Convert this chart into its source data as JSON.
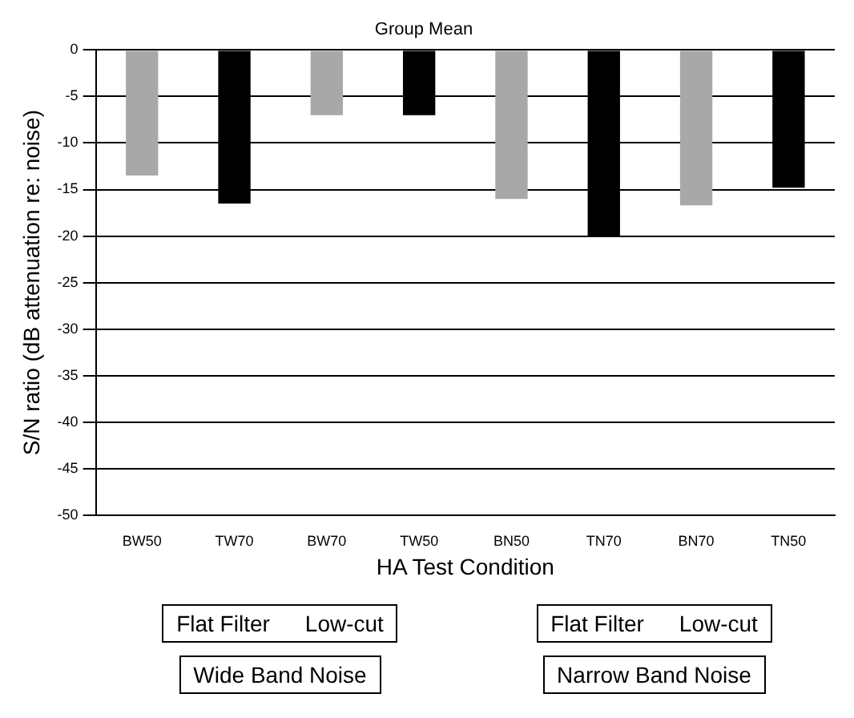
{
  "chart_data": {
    "type": "bar",
    "title": "Group Mean",
    "xlabel": "HA Test Condition",
    "ylabel": "S/N ratio (dB attenuation re: noise)",
    "categories": [
      "BW50",
      "TW70",
      "BW70",
      "TW50",
      "BN50",
      "TN70",
      "BN70",
      "TN50"
    ],
    "values": [
      -13.5,
      -16.5,
      -7,
      -7,
      -16,
      -20,
      -16.7,
      -14.8
    ],
    "colors": [
      "#a8a8a8",
      "#000000",
      "#a8a8a8",
      "#000000",
      "#a8a8a8",
      "#000000",
      "#a8a8a8",
      "#000000"
    ],
    "ylim": [
      -50,
      0
    ],
    "yticks": [
      -50,
      -45,
      -40,
      -35,
      -30,
      -25,
      -20,
      -15,
      -10,
      -5,
      0
    ],
    "grid": "y",
    "legend": false,
    "annotations": [
      "Flat Filter",
      "Low-cut",
      "Flat Filter",
      "Low-cut",
      "Wide Band Noise",
      "Narrow Band Noise"
    ]
  }
}
